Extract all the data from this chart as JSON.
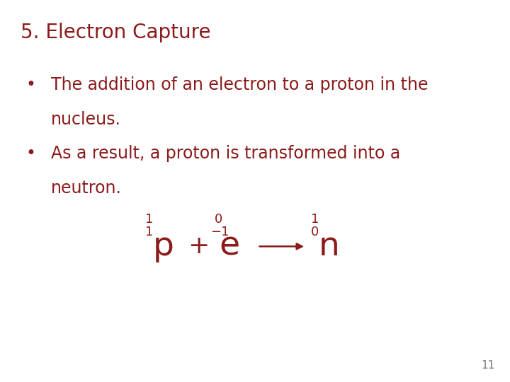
{
  "background_color": "#ffffff",
  "title_text": "5. Electron Capture",
  "title_color": "#8B1A1A",
  "title_fontsize": 20,
  "bullet1_line1": "The addition of an electron to a proton in the",
  "bullet1_line2": "nucleus.",
  "bullet2_line1": "As a result, a proton is transformed into a",
  "bullet2_line2": "neutron.",
  "bullet_color": "#8B1A1A",
  "bullet_fontsize": 17,
  "equation_color": "#8B1A1A",
  "large_fs": 34,
  "small_fs": 13,
  "page_number": "11",
  "page_number_color": "#777777",
  "page_number_fontsize": 11
}
